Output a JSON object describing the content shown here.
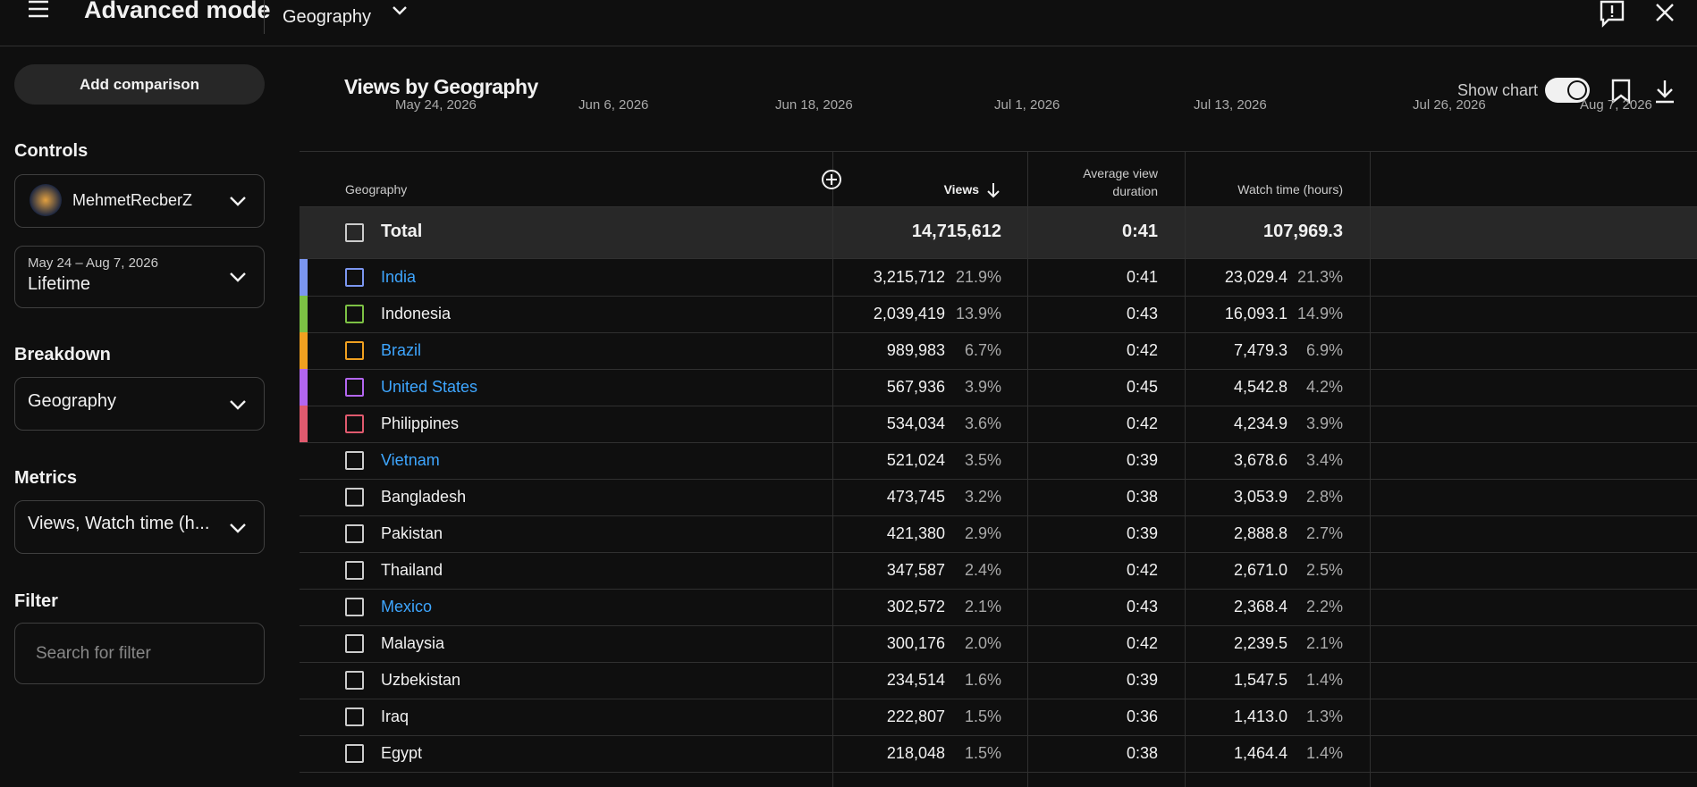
{
  "header": {
    "title": "Advanced mode",
    "report": "Geography"
  },
  "sidebar": {
    "add_comparison": "Add comparison",
    "controls_label": "Controls",
    "channel": "MehmetRecberZ",
    "date_range": "May 24 – Aug 7, 2026",
    "period": "Lifetime",
    "breakdown_label": "Breakdown",
    "breakdown": "Geography",
    "metrics_label": "Metrics",
    "metrics": "Views, Watch time (h...",
    "filter_label": "Filter",
    "filter_placeholder": "Search for filter"
  },
  "main": {
    "title": "Views by Geography",
    "show_chart": "Show chart",
    "axis_dates": [
      "May 24, 2026",
      "Jun 6, 2026",
      "Jun 18, 2026",
      "Jul 1, 2026",
      "Jul 13, 2026",
      "Jul 26, 2026",
      "Aug 7, 2026"
    ]
  },
  "table": {
    "columns": [
      "Geography",
      "Views",
      "Average view duration",
      "Watch time (hours)"
    ],
    "total": {
      "label": "Total",
      "views": "14,715,612",
      "avg_duration": "0:41",
      "watch_time": "107,969.3"
    },
    "rows": [
      {
        "geography": "India",
        "views": "3,215,712",
        "views_share": "21.9%",
        "avg_duration": "0:41",
        "watch_time": "23,029.4",
        "watch_share": "21.3%",
        "color": "#7b96f0",
        "link": true
      },
      {
        "geography": "Indonesia",
        "views": "2,039,419",
        "views_share": "13.9%",
        "avg_duration": "0:43",
        "watch_time": "16,093.1",
        "watch_share": "14.9%",
        "color": "#7cc144",
        "link": false
      },
      {
        "geography": "Brazil",
        "views": "989,983",
        "views_share": "6.7%",
        "avg_duration": "0:42",
        "watch_time": "7,479.3",
        "watch_share": "6.9%",
        "color": "#f0a020",
        "link": true
      },
      {
        "geography": "United States",
        "views": "567,936",
        "views_share": "3.9%",
        "avg_duration": "0:45",
        "watch_time": "4,542.8",
        "watch_share": "4.2%",
        "color": "#b366f0",
        "link": true
      },
      {
        "geography": "Philippines",
        "views": "534,034",
        "views_share": "3.6%",
        "avg_duration": "0:42",
        "watch_time": "4,234.9",
        "watch_share": "3.9%",
        "color": "#e05a6e",
        "link": false
      },
      {
        "geography": "Vietnam",
        "views": "521,024",
        "views_share": "3.5%",
        "avg_duration": "0:39",
        "watch_time": "3,678.6",
        "watch_share": "3.4%",
        "link": true
      },
      {
        "geography": "Bangladesh",
        "views": "473,745",
        "views_share": "3.2%",
        "avg_duration": "0:38",
        "watch_time": "3,053.9",
        "watch_share": "2.8%",
        "link": false
      },
      {
        "geography": "Pakistan",
        "views": "421,380",
        "views_share": "2.9%",
        "avg_duration": "0:39",
        "watch_time": "2,888.8",
        "watch_share": "2.7%",
        "link": false
      },
      {
        "geography": "Thailand",
        "views": "347,587",
        "views_share": "2.4%",
        "avg_duration": "0:42",
        "watch_time": "2,671.0",
        "watch_share": "2.5%",
        "link": false
      },
      {
        "geography": "Mexico",
        "views": "302,572",
        "views_share": "2.1%",
        "avg_duration": "0:43",
        "watch_time": "2,368.4",
        "watch_share": "2.2%",
        "link": true
      },
      {
        "geography": "Malaysia",
        "views": "300,176",
        "views_share": "2.0%",
        "avg_duration": "0:42",
        "watch_time": "2,239.5",
        "watch_share": "2.1%",
        "link": false
      },
      {
        "geography": "Uzbekistan",
        "views": "234,514",
        "views_share": "1.6%",
        "avg_duration": "0:39",
        "watch_time": "1,547.5",
        "watch_share": "1.4%",
        "link": false
      },
      {
        "geography": "Iraq",
        "views": "222,807",
        "views_share": "1.5%",
        "avg_duration": "0:36",
        "watch_time": "1,413.0",
        "watch_share": "1.3%",
        "link": false
      },
      {
        "geography": "Egypt",
        "views": "218,048",
        "views_share": "1.5%",
        "avg_duration": "0:38",
        "watch_time": "1,464.4",
        "watch_share": "1.4%",
        "link": false
      }
    ]
  }
}
